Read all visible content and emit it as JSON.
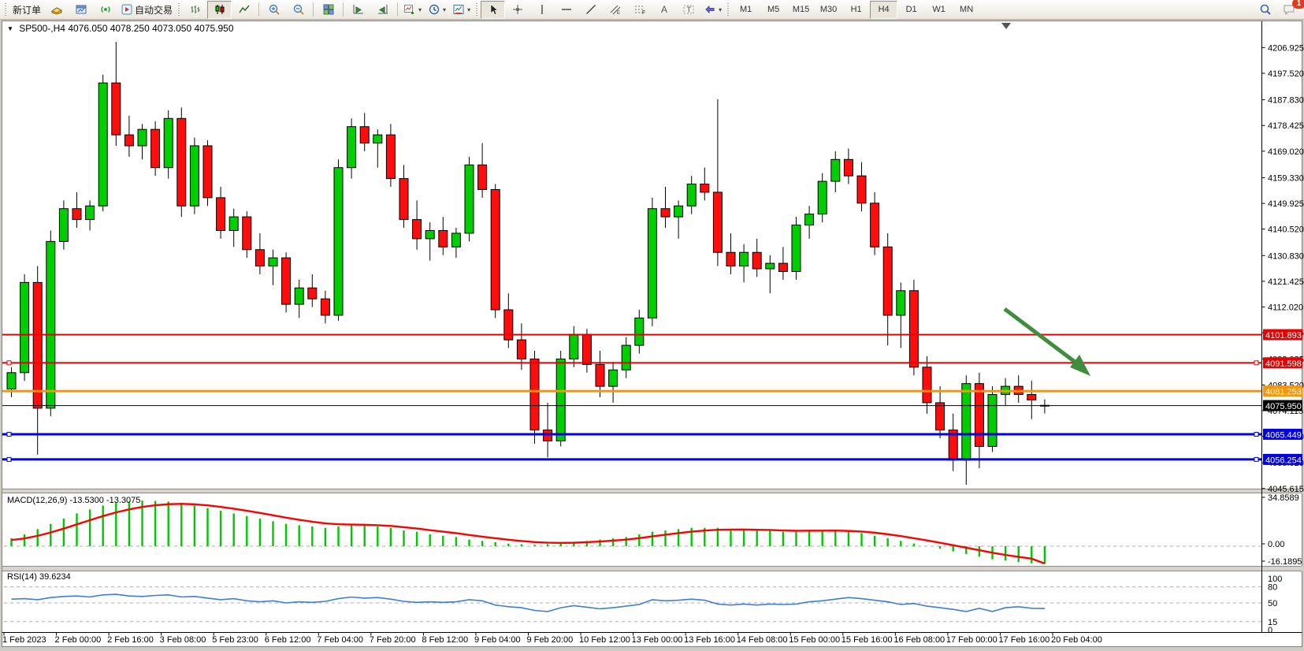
{
  "toolbar": {
    "groups": [
      {
        "items": [
          {
            "name": "new-order-button",
            "label": "新订单"
          },
          {
            "name": "profiles-icon-button",
            "icon": "profiles"
          },
          {
            "name": "charts-window-button",
            "icon": "chartwin"
          },
          {
            "name": "signals-button",
            "icon": "signals"
          },
          {
            "name": "autotrading-button",
            "icon": "autotrade",
            "label": "自动交易"
          }
        ],
        "lead": "grip"
      },
      {
        "items": [
          {
            "name": "bar-chart-button",
            "icon": "bars"
          },
          {
            "name": "candlestick-button",
            "icon": "candles",
            "active": true
          },
          {
            "name": "line-chart-button",
            "icon": "linechart"
          }
        ],
        "lead": "grip"
      },
      {
        "items": [
          {
            "name": "zoom-in-button",
            "icon": "zoomin"
          },
          {
            "name": "zoom-out-button",
            "icon": "zoomout"
          }
        ],
        "lead": "sep"
      },
      {
        "items": [
          {
            "name": "tile-windows-button",
            "icon": "tile"
          }
        ],
        "lead": "sep"
      },
      {
        "items": [
          {
            "name": "auto-scroll-button",
            "icon": "autoscroll"
          },
          {
            "name": "chart-shift-button",
            "icon": "chartshift"
          }
        ],
        "lead": "sep"
      },
      {
        "items": [
          {
            "name": "indicators-button",
            "icon": "indicators",
            "dropdown": true
          },
          {
            "name": "periods-button",
            "icon": "clock",
            "dropdown": true
          },
          {
            "name": "templates-button",
            "icon": "template",
            "dropdown": true
          }
        ],
        "lead": "sep"
      },
      {
        "items": [
          {
            "name": "cursor-button",
            "icon": "cursor",
            "active": true
          },
          {
            "name": "crosshair-button",
            "icon": "crosshair"
          },
          {
            "name": "vline-button",
            "icon": "vline"
          },
          {
            "name": "hline-button",
            "icon": "hline"
          },
          {
            "name": "trendline-button",
            "icon": "trendline"
          },
          {
            "name": "channel-button",
            "icon": "channel"
          },
          {
            "name": "fibonacci-button",
            "icon": "fibo"
          },
          {
            "name": "text-button",
            "icon": "textA"
          },
          {
            "name": "label-button",
            "icon": "textT"
          },
          {
            "name": "shapes-button",
            "icon": "shapes",
            "dropdown": true
          }
        ],
        "lead": "grip"
      },
      {
        "items": [],
        "lead": "grip",
        "timeframes": true
      }
    ],
    "timeframes": [
      "M1",
      "M5",
      "M15",
      "M30",
      "H1",
      "H4",
      "D1",
      "W1",
      "MN"
    ],
    "active_timeframe": "H4",
    "notification_count": "1"
  },
  "chart_window": {
    "title_symbol": "SP500-,H4",
    "title_ohlc": "4076.050 4078.250 4073.050 4075.950"
  },
  "indicators": {
    "macd": {
      "label": "MACD(12,26,9)",
      "main_value": "-13.5300",
      "signal_value": "-13.3075",
      "scale": [
        "34.8589",
        "0.00",
        "-16.1895"
      ]
    },
    "rsi": {
      "label": "RSI(14)",
      "value": "39.6234",
      "levels": [
        100,
        80,
        50,
        15,
        0
      ],
      "dashed_levels": [
        80,
        50,
        15
      ]
    }
  },
  "price_lines": [
    {
      "label": "4101.893",
      "price": 4101.893,
      "color": "#e60000",
      "width": 2,
      "handles": false,
      "name": "resistance-line-1"
    },
    {
      "label": "4091.598",
      "price": 4091.598,
      "color": "#e60000",
      "width": 2,
      "handles": true,
      "name": "resistance-line-2"
    },
    {
      "label": "4081.253",
      "price": 4081.253,
      "color": "#ff9400",
      "width": 3,
      "handles": false,
      "name": "orange-level-line"
    },
    {
      "label": "4075.950",
      "price": 4075.95,
      "color": "#000000",
      "width": 1,
      "handles": false,
      "name": "bid-price-line"
    },
    {
      "label": "4065.449",
      "price": 4065.449,
      "color": "#0000e6",
      "width": 3,
      "handles": true,
      "name": "support-line-1"
    },
    {
      "label": "4056.254",
      "price": 4056.254,
      "color": "#0000e6",
      "width": 3,
      "handles": true,
      "name": "support-line-2"
    }
  ],
  "chart_data": {
    "type": "candlestick",
    "symbol": "SP500-",
    "period": "H4",
    "title": "SP500-,H4 4076.050 4078.250 4073.050 4075.950",
    "price_axis_ticks": [
      4206.925,
      4197.52,
      4187.83,
      4178.425,
      4169.02,
      4159.33,
      4149.925,
      4140.52,
      4130.83,
      4121.425,
      4112.02,
      4102.615,
      4093.025,
      4083.52,
      4074.115,
      4064.71,
      4055.02,
      4045.615
    ],
    "time_labels": [
      "1 Feb 2023",
      "2 Feb 00:00",
      "2 Feb 16:00",
      "3 Feb 08:00",
      "5 Feb 23:00",
      "6 Feb 12:00",
      "7 Feb 04:00",
      "7 Feb 20:00",
      "8 Feb 12:00",
      "9 Feb 04:00",
      "9 Feb 20:00",
      "10 Feb 12:00",
      "13 Feb 00:00",
      "13 Feb 16:00",
      "14 Feb 08:00",
      "15 Feb 00:00",
      "15 Feb 16:00",
      "16 Feb 08:00",
      "17 Feb 00:00",
      "17 Feb 16:00",
      "20 Feb 04:00"
    ],
    "ohlc": [
      [
        4082,
        4090,
        4079,
        4088
      ],
      [
        4088,
        4124,
        4085,
        4121
      ],
      [
        4121,
        4127,
        4058,
        4075
      ],
      [
        4075,
        4140,
        4072,
        4136
      ],
      [
        4136,
        4151,
        4133,
        4148
      ],
      [
        4148,
        4154,
        4141,
        4144
      ],
      [
        4144,
        4151,
        4140,
        4149
      ],
      [
        4149,
        4197,
        4147,
        4194
      ],
      [
        4194,
        4209,
        4171,
        4175
      ],
      [
        4175,
        4182,
        4167,
        4171
      ],
      [
        4171,
        4179,
        4166,
        4177
      ],
      [
        4177,
        4180,
        4160,
        4163
      ],
      [
        4163,
        4184,
        4159,
        4181
      ],
      [
        4181,
        4185,
        4145,
        4149
      ],
      [
        4149,
        4174,
        4146,
        4171
      ],
      [
        4171,
        4173,
        4149,
        4152
      ],
      [
        4152,
        4156,
        4137,
        4140
      ],
      [
        4140,
        4148,
        4134,
        4145
      ],
      [
        4145,
        4147,
        4130,
        4133
      ],
      [
        4133,
        4139,
        4124,
        4127
      ],
      [
        4127,
        4133,
        4120,
        4130
      ],
      [
        4130,
        4132,
        4110,
        4113
      ],
      [
        4113,
        4122,
        4108,
        4119
      ],
      [
        4119,
        4124,
        4112,
        4115
      ],
      [
        4115,
        4118,
        4106,
        4109
      ],
      [
        4109,
        4166,
        4107,
        4163
      ],
      [
        4163,
        4181,
        4159,
        4178
      ],
      [
        4178,
        4183,
        4169,
        4172
      ],
      [
        4172,
        4177,
        4163,
        4175
      ],
      [
        4175,
        4179,
        4156,
        4159
      ],
      [
        4159,
        4164,
        4141,
        4144
      ],
      [
        4144,
        4151,
        4133,
        4137
      ],
      [
        4137,
        4143,
        4129,
        4140
      ],
      [
        4140,
        4145,
        4131,
        4134
      ],
      [
        4134,
        4141,
        4130,
        4139
      ],
      [
        4139,
        4167,
        4136,
        4164
      ],
      [
        4164,
        4172,
        4152,
        4155
      ],
      [
        4155,
        4157,
        4108,
        4111
      ],
      [
        4111,
        4117,
        4097,
        4100
      ],
      [
        4100,
        4106,
        4089,
        4093
      ],
      [
        4093,
        4096,
        4062,
        4067
      ],
      [
        4067,
        4077,
        4057,
        4063
      ],
      [
        4063,
        4096,
        4061,
        4093
      ],
      [
        4093,
        4105,
        4090,
        4102
      ],
      [
        4102,
        4104,
        4088,
        4091
      ],
      [
        4091,
        4096,
        4079,
        4083
      ],
      [
        4083,
        4092,
        4077,
        4089
      ],
      [
        4089,
        4101,
        4086,
        4098
      ],
      [
        4098,
        4111,
        4095,
        4108
      ],
      [
        4108,
        4152,
        4105,
        4148
      ],
      [
        4148,
        4156,
        4141,
        4145
      ],
      [
        4145,
        4151,
        4137,
        4149
      ],
      [
        4149,
        4160,
        4146,
        4157
      ],
      [
        4157,
        4163,
        4151,
        4154
      ],
      [
        4154,
        4188,
        4127,
        4132
      ],
      [
        4132,
        4139,
        4124,
        4127
      ],
      [
        4127,
        4135,
        4121,
        4132
      ],
      [
        4132,
        4137,
        4123,
        4126
      ],
      [
        4126,
        4131,
        4117,
        4128
      ],
      [
        4128,
        4134,
        4122,
        4125
      ],
      [
        4125,
        4145,
        4122,
        4142
      ],
      [
        4142,
        4149,
        4137,
        4146
      ],
      [
        4146,
        4161,
        4143,
        4158
      ],
      [
        4158,
        4169,
        4154,
        4166
      ],
      [
        4166,
        4170,
        4157,
        4160
      ],
      [
        4160,
        4165,
        4147,
        4150
      ],
      [
        4150,
        4154,
        4131,
        4134
      ],
      [
        4134,
        4139,
        4098,
        4109
      ],
      [
        4109,
        4121,
        4097,
        4118
      ],
      [
        4118,
        4122,
        4087,
        4090
      ],
      [
        4090,
        4094,
        4073,
        4077
      ],
      [
        4077,
        4083,
        4064,
        4067
      ],
      [
        4067,
        4073,
        4052,
        4056
      ],
      [
        4056,
        4087,
        4047,
        4084
      ],
      [
        4084,
        4088,
        4053,
        4061
      ],
      [
        4061,
        4083,
        4059,
        4080
      ],
      [
        4080,
        4086,
        4076,
        4083
      ],
      [
        4083,
        4087,
        4077,
        4080
      ],
      [
        4080,
        4085,
        4071,
        4078
      ],
      [
        4076.05,
        4078.25,
        4073.05,
        4075.95
      ]
    ],
    "macd_histogram": [
      6,
      9,
      13,
      17,
      21,
      25,
      28,
      31,
      33,
      34,
      34.8,
      34.5,
      34,
      33,
      31,
      29,
      27,
      25,
      23,
      21,
      19,
      17,
      16,
      15,
      14,
      15,
      16,
      16,
      15,
      14,
      12,
      11,
      9,
      8,
      7,
      5,
      4,
      3,
      2,
      1.5,
      1,
      1.5,
      2,
      3,
      4,
      5,
      6,
      7,
      9,
      11,
      12,
      13,
      14,
      14,
      14,
      13,
      13,
      12,
      12,
      11,
      11,
      12,
      12,
      12,
      11,
      10,
      8,
      6,
      4,
      2,
      0,
      -2,
      -4,
      -6,
      -8,
      -10,
      -11,
      -12,
      -13,
      -13.53
    ],
    "macd_last": {
      "main": -13.53,
      "signal": -13.3075
    },
    "macd_scale": {
      "max": 34.8589,
      "zero": 0,
      "min": -16.1895
    },
    "rsi": [
      57,
      58,
      56,
      60,
      62,
      63,
      61,
      65,
      66,
      63,
      62,
      64,
      65,
      61,
      62,
      59,
      56,
      58,
      54,
      52,
      54,
      50,
      52,
      51,
      53,
      58,
      61,
      59,
      60,
      57,
      53,
      51,
      52,
      51,
      52,
      56,
      54,
      46,
      43,
      41,
      36,
      34,
      41,
      45,
      42,
      39,
      41,
      44,
      47,
      56,
      54,
      55,
      57,
      55,
      48,
      46,
      48,
      46,
      48,
      47,
      48,
      52,
      54,
      57,
      60,
      58,
      55,
      52,
      47,
      49,
      44,
      41,
      38,
      34,
      40,
      34,
      41,
      43,
      40,
      39.62
    ],
    "rsi_last": 39.6234,
    "legend_position": "none",
    "grid": false
  },
  "annotations": {
    "arrow": {
      "name": "down-trend-arrow",
      "color": "#3e8e3e",
      "from_price": 4112.0,
      "to_price": 4087.5
    }
  },
  "colors": {
    "bull": "#00ce00",
    "bear": "#ff0d0d",
    "wick": "#000000",
    "macd_bar": "#00c800",
    "macd_signal": "#ff0000",
    "rsi_line": "#3d7ed6",
    "dash": "#adadad",
    "axis_text": "#000000",
    "panel_border": "#7f7f7f"
  }
}
